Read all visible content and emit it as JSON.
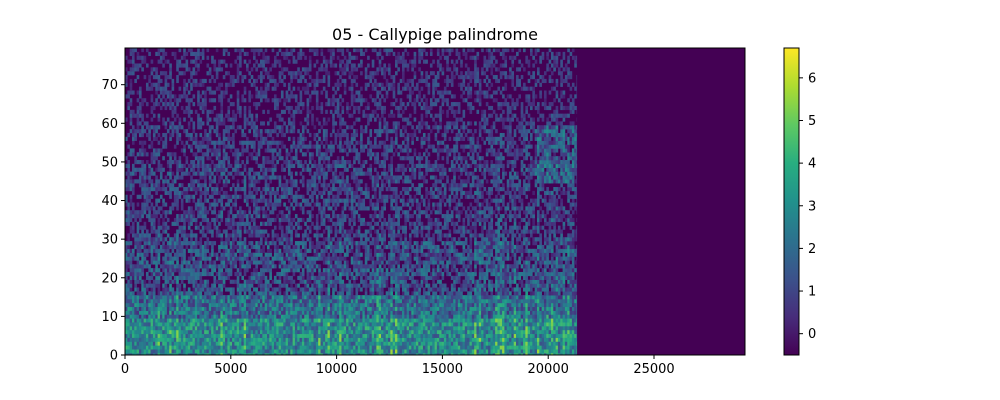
{
  "chart_data": {
    "type": "heatmap",
    "title": "05 - Callypige palindrome",
    "xlabel": "",
    "ylabel": "",
    "xlim": [
      0,
      29300
    ],
    "ylim": [
      0,
      79.5
    ],
    "x_ticks": [
      0,
      5000,
      10000,
      15000,
      20000,
      25000
    ],
    "x_tick_labels": [
      "0",
      "5000",
      "10000",
      "15000",
      "20000",
      "25000"
    ],
    "y_ticks": [
      0,
      10,
      20,
      30,
      40,
      50,
      60,
      70
    ],
    "y_tick_labels": [
      "0",
      "10",
      "20",
      "30",
      "40",
      "50",
      "60",
      "70"
    ],
    "signal_end_x": 21350,
    "background_value": -0.5,
    "colorbar": {
      "colormap": "viridis",
      "range": [
        -0.5,
        6.7
      ],
      "ticks": [
        0,
        1,
        2,
        3,
        4,
        5,
        6
      ],
      "tick_labels": [
        "0",
        "1",
        "2",
        "3",
        "4",
        "5",
        "6"
      ]
    },
    "approx_mean_by_row_band": [
      {
        "rows": [
          0,
          10
        ],
        "mean_value": 2.8
      },
      {
        "rows": [
          10,
          16
        ],
        "mean_value": 2.0
      },
      {
        "rows": [
          16,
          30
        ],
        "mean_value": 1.0
      },
      {
        "rows": [
          30,
          50
        ],
        "mean_value": 0.5
      },
      {
        "rows": [
          50,
          60
        ],
        "mean_value": 0.3
      },
      {
        "rows": [
          60,
          80
        ],
        "mean_value": 0.0
      }
    ],
    "grid": false,
    "legend": "none"
  }
}
